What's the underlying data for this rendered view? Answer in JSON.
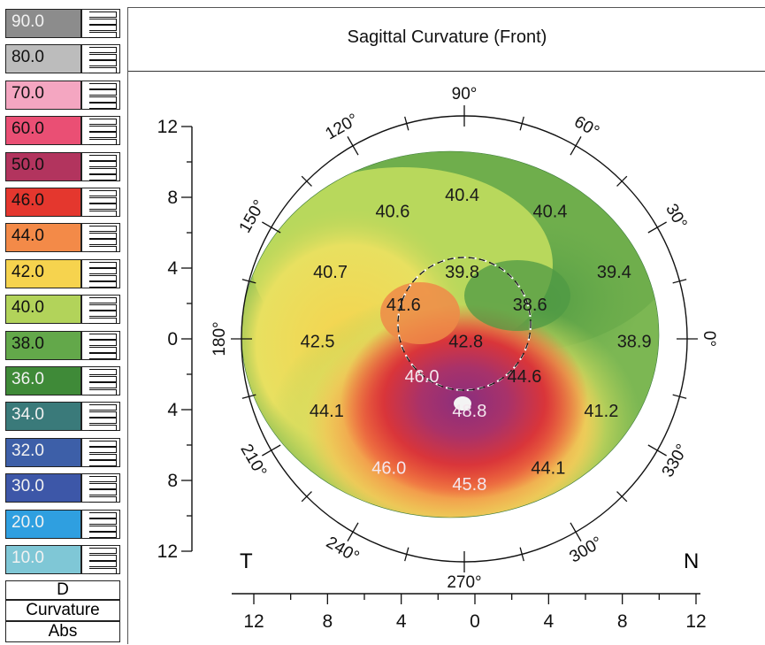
{
  "legend": {
    "levels": [
      {
        "label": "90.0",
        "color": "#8c8c8c"
      },
      {
        "label": "80.0",
        "color": "#bcbcbc"
      },
      {
        "label": "70.0",
        "color": "#f4a6c1"
      },
      {
        "label": "60.0",
        "color": "#ea4f74"
      },
      {
        "label": "50.0",
        "color": "#b2345e"
      },
      {
        "label": "46.0",
        "color": "#e4372e"
      },
      {
        "label": "44.0",
        "color": "#f38a48"
      },
      {
        "label": "42.0",
        "color": "#f6d34e"
      },
      {
        "label": "40.0",
        "color": "#b2d35a"
      },
      {
        "label": "38.0",
        "color": "#63a84a"
      },
      {
        "label": "36.0",
        "color": "#3f8a38"
      },
      {
        "label": "34.0",
        "color": "#3a7a7a"
      },
      {
        "label": "32.0",
        "color": "#3d5fa8"
      },
      {
        "label": "30.0",
        "color": "#3d57a8"
      },
      {
        "label": "20.0",
        "color": "#2f9fe0"
      },
      {
        "label": "10.0",
        "color": "#7fc7d6"
      }
    ],
    "unit": "D",
    "mode": "Curvature",
    "scale": "Abs"
  },
  "map": {
    "title": "Sagittal Curvature (Front)",
    "temporal_label": "T",
    "nasal_label": "N",
    "angle_labels": [
      {
        "deg": 90,
        "text": "90°"
      },
      {
        "deg": 120,
        "text": "120°"
      },
      {
        "deg": 60,
        "text": "60°"
      },
      {
        "deg": 150,
        "text": "150°"
      },
      {
        "deg": 30,
        "text": "30°"
      },
      {
        "deg": 180,
        "text": "180°"
      },
      {
        "deg": 0,
        "text": "0°"
      },
      {
        "deg": 210,
        "text": "210°"
      },
      {
        "deg": 330,
        "text": "330°"
      },
      {
        "deg": 240,
        "text": "240°"
      },
      {
        "deg": 300,
        "text": "300°"
      },
      {
        "deg": 270,
        "text": "270°"
      }
    ],
    "x_axis_ticks": [
      "12",
      "8",
      "4",
      "0",
      "4",
      "8",
      "12"
    ],
    "y_axis_ticks": [
      "12",
      "8",
      "4",
      "0",
      "4",
      "8",
      "12"
    ],
    "readings": [
      {
        "value": "40.4",
        "x": -0.6,
        "y": 7.8,
        "light": false
      },
      {
        "value": "40.6",
        "x": -4.4,
        "y": 6.9,
        "light": false
      },
      {
        "value": "40.4",
        "x": 4.2,
        "y": 6.9,
        "light": false
      },
      {
        "value": "40.7",
        "x": -7.8,
        "y": 3.6,
        "light": false
      },
      {
        "value": "39.8",
        "x": -0.6,
        "y": 3.6,
        "light": false
      },
      {
        "value": "39.4",
        "x": 7.7,
        "y": 3.6,
        "light": false
      },
      {
        "value": "41.6",
        "x": -3.8,
        "y": 1.8,
        "light": false
      },
      {
        "value": "38.6",
        "x": 3.1,
        "y": 1.8,
        "light": false
      },
      {
        "value": "42.5",
        "x": -8.5,
        "y": -0.2,
        "light": false
      },
      {
        "value": "42.8",
        "x": -0.4,
        "y": -0.2,
        "light": false
      },
      {
        "value": "38.9",
        "x": 8.8,
        "y": -0.2,
        "light": false
      },
      {
        "value": "46.0",
        "x": -2.8,
        "y": -2.1,
        "light": true
      },
      {
        "value": "44.6",
        "x": 2.8,
        "y": -2.1,
        "light": false
      },
      {
        "value": "44.1",
        "x": -8.0,
        "y": -4.0,
        "light": false
      },
      {
        "value": "48.8",
        "x": -0.2,
        "y": -4.0,
        "light": true
      },
      {
        "value": "41.2",
        "x": 7.0,
        "y": -4.0,
        "light": false
      },
      {
        "value": "46.0",
        "x": -4.6,
        "y": -7.1,
        "light": true
      },
      {
        "value": "44.1",
        "x": 4.1,
        "y": -7.1,
        "light": false
      },
      {
        "value": "45.8",
        "x": -0.2,
        "y": -8.0,
        "light": true
      }
    ]
  }
}
